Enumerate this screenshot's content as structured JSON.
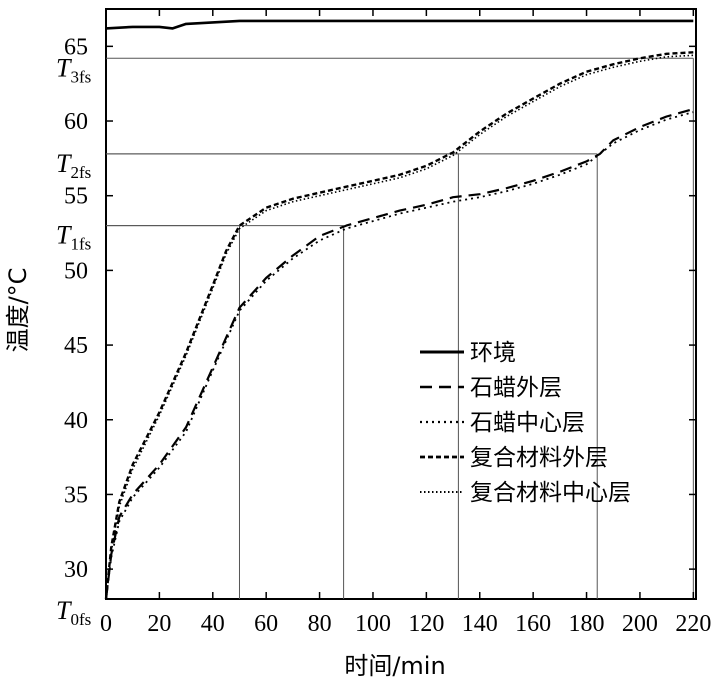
{
  "chart_data": {
    "type": "line",
    "title": "",
    "xlabel": "时间/min",
    "ylabel": "温度/°C",
    "xlim": [
      0,
      221
    ],
    "ylim": [
      28,
      67.5
    ],
    "x_ticks": [
      "0",
      "20",
      "40",
      "60",
      "80",
      "100",
      "120",
      "140",
      "160",
      "180",
      "200",
      "220"
    ],
    "x_tick_values": [
      0,
      20,
      40,
      60,
      80,
      100,
      120,
      140,
      160,
      180,
      200,
      220
    ],
    "y_ticks": [
      "30",
      "35",
      "40",
      "45",
      "50",
      "55",
      "60",
      "65"
    ],
    "y_tick_values": [
      30,
      35,
      40,
      45,
      50,
      55,
      60,
      65
    ],
    "threshold_labels": [
      {
        "main": "T",
        "sub": "0fs",
        "value": 28
      },
      {
        "main": "T",
        "sub": "1fs",
        "value": 53
      },
      {
        "main": "T",
        "sub": "2fs",
        "value": 57.8
      },
      {
        "main": "T",
        "sub": "3fs",
        "value": 64.2
      }
    ],
    "guides": [
      {
        "x": 50,
        "y": 53
      },
      {
        "x": 89,
        "y": 53
      },
      {
        "x": 132,
        "y": 57.8
      },
      {
        "x": 184,
        "y": 57.8
      },
      {
        "x": 220,
        "y": 64.2
      }
    ],
    "legend_position": "right",
    "series": [
      {
        "name": "环境",
        "style": "solid",
        "x": [
          0,
          10,
          20,
          25,
          30,
          40,
          50,
          60,
          80,
          100,
          120,
          140,
          160,
          180,
          200,
          220
        ],
        "y": [
          66.2,
          66.3,
          66.3,
          66.2,
          66.5,
          66.6,
          66.7,
          66.7,
          66.7,
          66.7,
          66.7,
          66.7,
          66.7,
          66.7,
          66.7,
          66.7
        ]
      },
      {
        "name": "石蜡外层",
        "style": "dash",
        "x": [
          0,
          2,
          5,
          10,
          20,
          30,
          40,
          50,
          60,
          70,
          80,
          90,
          100,
          110,
          120,
          130,
          140,
          150,
          160,
          170,
          180,
          185,
          190,
          200,
          210,
          220
        ],
        "y": [
          28,
          31,
          33.5,
          35,
          37,
          39.5,
          43.5,
          47.5,
          49.5,
          51,
          52.3,
          53,
          53.5,
          54,
          54.4,
          54.9,
          55.1,
          55.5,
          56,
          56.6,
          57.3,
          57.8,
          58.7,
          59.6,
          60.3,
          60.8
        ]
      },
      {
        "name": "石蜡中心层",
        "style": "dot",
        "x": [
          0,
          2,
          5,
          10,
          20,
          30,
          40,
          50,
          60,
          70,
          80,
          90,
          100,
          110,
          120,
          130,
          140,
          150,
          160,
          170,
          180,
          185,
          190,
          200,
          210,
          220
        ],
        "y": [
          28,
          30.8,
          33.2,
          34.8,
          36.8,
          39.2,
          43.3,
          47.3,
          49.3,
          50.8,
          52,
          52.8,
          53.3,
          53.8,
          54.2,
          54.6,
          54.9,
          55.3,
          55.8,
          56.4,
          57.1,
          57.8,
          58.5,
          59.4,
          60.1,
          60.6
        ]
      },
      {
        "name": "复合材料外层",
        "style": "short-dash",
        "x": [
          0,
          2,
          5,
          10,
          20,
          30,
          40,
          45,
          50,
          60,
          70,
          80,
          90,
          100,
          110,
          120,
          130,
          140,
          150,
          160,
          170,
          180,
          190,
          200,
          210,
          220
        ],
        "y": [
          28,
          31.5,
          34.5,
          37,
          40.5,
          44.5,
          49,
          51.3,
          53,
          54.2,
          54.8,
          55.2,
          55.6,
          56,
          56.4,
          57,
          57.9,
          59.3,
          60.5,
          61.5,
          62.5,
          63.3,
          63.8,
          64.2,
          64.5,
          64.6
        ]
      },
      {
        "name": "复合材料中心层",
        "style": "fine-dot",
        "x": [
          0,
          2,
          5,
          10,
          20,
          30,
          40,
          45,
          50,
          60,
          70,
          80,
          90,
          100,
          110,
          120,
          130,
          140,
          150,
          160,
          170,
          180,
          190,
          200,
          210,
          220
        ],
        "y": [
          28,
          31.2,
          34.2,
          36.7,
          40.3,
          44.3,
          48.8,
          51.1,
          52.8,
          54,
          54.6,
          55,
          55.4,
          55.8,
          56.2,
          56.8,
          57.7,
          59.1,
          60.3,
          61.3,
          62.3,
          63.1,
          63.6,
          64,
          64.3,
          64.4
        ]
      }
    ]
  }
}
